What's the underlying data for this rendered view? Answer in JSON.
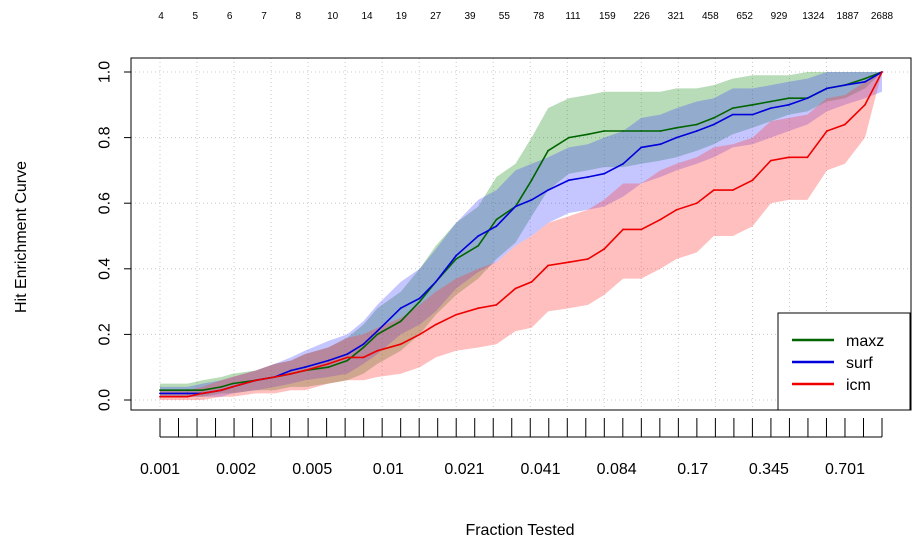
{
  "chart_data": {
    "type": "line",
    "title": "",
    "xlabel": "Fraction Tested",
    "ylabel": "Hit Enrichment Curve",
    "x_tick_labels": [
      "0.001",
      "0.002",
      "0.005",
      "0.01",
      "0.021",
      "0.041",
      "0.084",
      "0.17",
      "0.345",
      "0.701"
    ],
    "top_tick_labels": [
      "4",
      "5",
      "6",
      "7",
      "8",
      "10",
      "14",
      "19",
      "27",
      "39",
      "55",
      "78",
      "111",
      "159",
      "226",
      "321",
      "458",
      "652",
      "929",
      "1324",
      "1887",
      "2688"
    ],
    "ylim": [
      0,
      1
    ],
    "y_ticks": [
      0,
      0.2,
      0.4,
      0.6,
      0.8,
      1
    ],
    "y_tick_labels": [
      "0.0",
      "0.2",
      "0.4",
      "0.6",
      "0.8",
      "1.0"
    ],
    "x_scale": "log",
    "grid": true,
    "legend_position": "bottom-right",
    "x": [
      0.001,
      0.0013,
      0.0015,
      0.0018,
      0.002,
      0.0025,
      0.003,
      0.0035,
      0.004,
      0.005,
      0.006,
      0.007,
      0.008,
      0.01,
      0.012,
      0.014,
      0.017,
      0.021,
      0.025,
      0.03,
      0.035,
      0.041,
      0.05,
      0.06,
      0.07,
      0.084,
      0.1,
      0.12,
      0.14,
      0.17,
      0.2,
      0.24,
      0.29,
      0.345,
      0.41,
      0.49,
      0.59,
      0.701,
      0.85,
      1.0
    ],
    "series": [
      {
        "name": "maxz",
        "color": "#006400",
        "band_color": "rgba(0,128,0,0.28)",
        "values": [
          0.03,
          0.03,
          0.03,
          0.04,
          0.05,
          0.06,
          0.07,
          0.08,
          0.09,
          0.1,
          0.12,
          0.16,
          0.2,
          0.24,
          0.3,
          0.36,
          0.43,
          0.47,
          0.55,
          0.59,
          0.67,
          0.76,
          0.8,
          0.81,
          0.82,
          0.82,
          0.82,
          0.82,
          0.83,
          0.84,
          0.86,
          0.89,
          0.9,
          0.91,
          0.92,
          0.92,
          0.95,
          0.96,
          0.98,
          1.0
        ],
        "lower": [
          0.01,
          0.01,
          0.01,
          0.02,
          0.02,
          0.03,
          0.03,
          0.04,
          0.04,
          0.05,
          0.06,
          0.08,
          0.11,
          0.15,
          0.2,
          0.26,
          0.32,
          0.37,
          0.43,
          0.48,
          0.56,
          0.64,
          0.69,
          0.7,
          0.71,
          0.71,
          0.72,
          0.73,
          0.74,
          0.76,
          0.78,
          0.81,
          0.83,
          0.85,
          0.87,
          0.88,
          0.91,
          0.92,
          0.95,
          1.0
        ],
        "upper": [
          0.05,
          0.05,
          0.06,
          0.07,
          0.08,
          0.09,
          0.11,
          0.12,
          0.14,
          0.16,
          0.19,
          0.23,
          0.28,
          0.33,
          0.4,
          0.47,
          0.54,
          0.59,
          0.68,
          0.72,
          0.8,
          0.89,
          0.92,
          0.93,
          0.94,
          0.94,
          0.94,
          0.94,
          0.95,
          0.95,
          0.96,
          0.98,
          0.99,
          0.99,
          0.99,
          1.0,
          1.0,
          1.0,
          1.0,
          1.0
        ]
      },
      {
        "name": "surf",
        "color": "#0000dd",
        "band_color": "rgba(64,64,255,0.3)",
        "values": [
          0.02,
          0.02,
          0.02,
          0.03,
          0.04,
          0.06,
          0.07,
          0.09,
          0.1,
          0.12,
          0.14,
          0.17,
          0.21,
          0.28,
          0.31,
          0.36,
          0.44,
          0.5,
          0.53,
          0.59,
          0.61,
          0.64,
          0.67,
          0.68,
          0.69,
          0.72,
          0.77,
          0.78,
          0.8,
          0.82,
          0.84,
          0.87,
          0.87,
          0.89,
          0.9,
          0.92,
          0.95,
          0.96,
          0.97,
          1.0
        ],
        "lower": [
          0.01,
          0.01,
          0.01,
          0.01,
          0.02,
          0.03,
          0.04,
          0.05,
          0.06,
          0.07,
          0.08,
          0.11,
          0.14,
          0.2,
          0.23,
          0.27,
          0.34,
          0.39,
          0.42,
          0.47,
          0.5,
          0.54,
          0.57,
          0.58,
          0.59,
          0.62,
          0.66,
          0.68,
          0.7,
          0.72,
          0.74,
          0.77,
          0.78,
          0.8,
          0.82,
          0.84,
          0.88,
          0.9,
          0.92,
          0.94
        ],
        "upper": [
          0.04,
          0.04,
          0.05,
          0.06,
          0.07,
          0.09,
          0.11,
          0.13,
          0.15,
          0.18,
          0.2,
          0.24,
          0.29,
          0.36,
          0.4,
          0.46,
          0.54,
          0.61,
          0.64,
          0.7,
          0.72,
          0.74,
          0.77,
          0.78,
          0.8,
          0.82,
          0.86,
          0.87,
          0.89,
          0.91,
          0.92,
          0.95,
          0.95,
          0.96,
          0.97,
          0.98,
          1.0,
          1.0,
          1.0,
          1.0
        ]
      },
      {
        "name": "icm",
        "color": "#ee0000",
        "band_color": "rgba(255,60,60,0.33)",
        "values": [
          0.01,
          0.01,
          0.02,
          0.03,
          0.04,
          0.06,
          0.07,
          0.08,
          0.09,
          0.11,
          0.13,
          0.13,
          0.15,
          0.17,
          0.2,
          0.23,
          0.26,
          0.28,
          0.29,
          0.34,
          0.36,
          0.41,
          0.42,
          0.43,
          0.46,
          0.52,
          0.52,
          0.55,
          0.58,
          0.6,
          0.64,
          0.64,
          0.67,
          0.73,
          0.74,
          0.74,
          0.82,
          0.84,
          0.9,
          1.0
        ],
        "lower": [
          0.0,
          0.0,
          0.0,
          0.01,
          0.01,
          0.02,
          0.02,
          0.03,
          0.03,
          0.05,
          0.06,
          0.06,
          0.07,
          0.08,
          0.1,
          0.13,
          0.15,
          0.16,
          0.17,
          0.21,
          0.22,
          0.27,
          0.28,
          0.29,
          0.32,
          0.37,
          0.37,
          0.4,
          0.43,
          0.45,
          0.5,
          0.5,
          0.53,
          0.6,
          0.61,
          0.61,
          0.7,
          0.72,
          0.8,
          1.0
        ],
        "upper": [
          0.03,
          0.03,
          0.04,
          0.06,
          0.07,
          0.09,
          0.11,
          0.12,
          0.14,
          0.16,
          0.19,
          0.2,
          0.22,
          0.25,
          0.29,
          0.33,
          0.37,
          0.4,
          0.42,
          0.47,
          0.5,
          0.54,
          0.56,
          0.58,
          0.61,
          0.66,
          0.66,
          0.7,
          0.72,
          0.74,
          0.77,
          0.78,
          0.8,
          0.85,
          0.86,
          0.87,
          0.92,
          0.93,
          0.97,
          1.0
        ]
      }
    ]
  }
}
